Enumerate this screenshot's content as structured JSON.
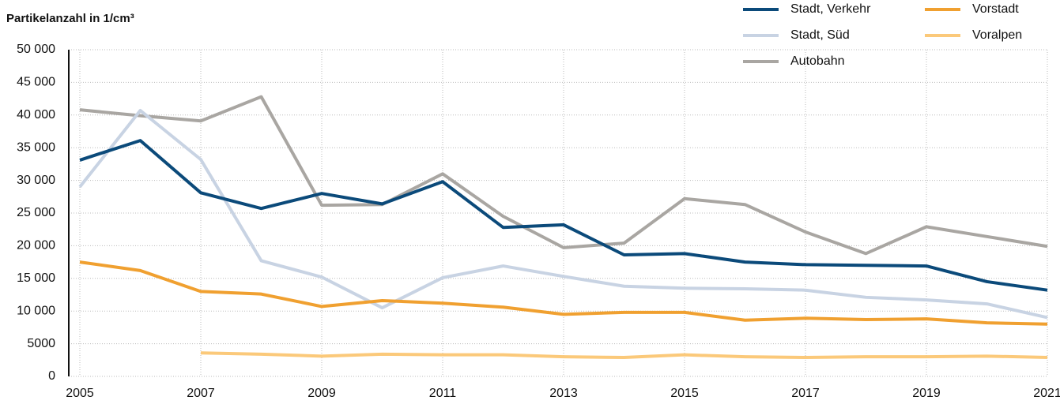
{
  "chart_data": {
    "type": "line",
    "title": "Partikelanzahl in 1/cm³",
    "x": [
      2005,
      2006,
      2007,
      2008,
      2009,
      2010,
      2011,
      2012,
      2013,
      2014,
      2015,
      2016,
      2017,
      2018,
      2019,
      2020,
      2021
    ],
    "xlim": [
      2005,
      2021
    ],
    "xticks": [
      2005,
      2007,
      2009,
      2011,
      2013,
      2015,
      2017,
      2019,
      2021
    ],
    "ylim": [
      0,
      50000
    ],
    "yticks": [
      0,
      5000,
      {
        "value": 10000,
        "label": "10 000"
      },
      {
        "value": 15000,
        "label": "15 000"
      },
      {
        "value": 20000,
        "label": "20 000"
      },
      {
        "value": 25000,
        "label": "25 000"
      },
      {
        "value": 30000,
        "label": "30 000"
      },
      {
        "value": 35000,
        "label": "35 000"
      },
      {
        "value": 40000,
        "label": "40 000"
      },
      {
        "value": 45000,
        "label": "45 000"
      },
      {
        "value": 50000,
        "label": "50 000"
      }
    ],
    "grid": true,
    "legend": "top-right",
    "series": [
      {
        "name": "Stadt, Verkehr",
        "color": "#0b4a7a",
        "values": [
          33100,
          36100,
          28100,
          25700,
          28000,
          26400,
          29800,
          22800,
          23200,
          18600,
          18800,
          17500,
          17100,
          17000,
          16900,
          14500,
          13200
        ]
      },
      {
        "name": "Vorstadt",
        "color": "#f0a030",
        "values": [
          17500,
          16200,
          13000,
          12600,
          10700,
          11600,
          11200,
          10600,
          9500,
          9800,
          9800,
          8600,
          8900,
          8700,
          8800,
          8200,
          8000
        ]
      },
      {
        "name": "Stadt, Süd",
        "color": "#c8d3e3",
        "values": [
          29000,
          40700,
          33200,
          17700,
          15200,
          10500,
          15100,
          16900,
          15300,
          13800,
          13500,
          13400,
          13200,
          12100,
          11700,
          11100,
          9000
        ]
      },
      {
        "name": "Voralpen",
        "color": "#fbc97a",
        "values": [
          null,
          null,
          3600,
          3400,
          3100,
          3400,
          3300,
          3300,
          3000,
          2900,
          3300,
          3000,
          2900,
          3000,
          3000,
          3100,
          2900
        ]
      },
      {
        "name": "Autobahn",
        "color": "#a9a6a2",
        "values": [
          40800,
          39900,
          39100,
          42800,
          26200,
          26300,
          31000,
          24500,
          19700,
          20400,
          27200,
          26300,
          22100,
          18800,
          22900,
          21400,
          19900
        ]
      }
    ]
  }
}
